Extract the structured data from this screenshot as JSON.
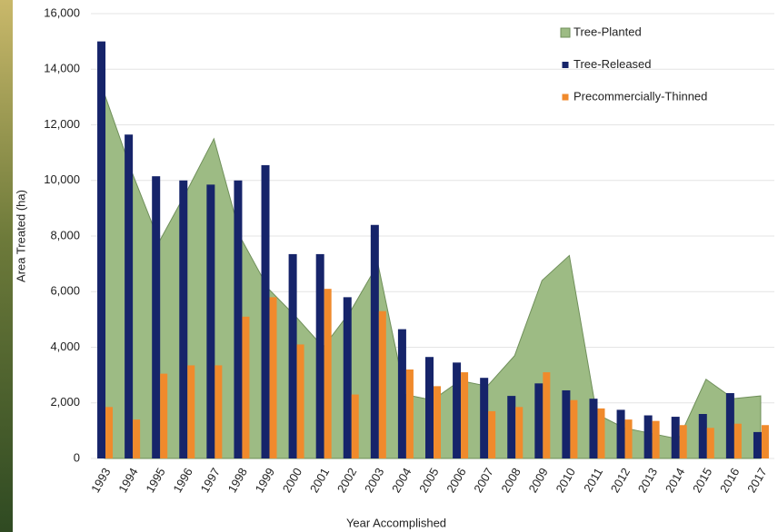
{
  "chart_data": {
    "type": "bar",
    "x_label": "Year Accomplished",
    "y_label": "Area Treated (ha)",
    "categories": [
      "1993",
      "1994",
      "1995",
      "1996",
      "1997",
      "1998",
      "1999",
      "2000",
      "2001",
      "2002",
      "2003",
      "2004",
      "2005",
      "2006",
      "2007",
      "2008",
      "2009",
      "2010",
      "2011",
      "2012",
      "2013",
      "2014",
      "2015",
      "2016",
      "2017"
    ],
    "series": [
      {
        "name": "Tree-Planted",
        "type": "area",
        "color": "#9dbb84",
        "values": [
          13100,
          10300,
          7800,
          9600,
          11500,
          7900,
          6100,
          5100,
          4000,
          5300,
          7000,
          2300,
          2100,
          2800,
          2600,
          3700,
          6400,
          7300,
          1600,
          1100,
          900,
          700,
          2850,
          2150,
          2250
        ]
      },
      {
        "name": "Tree-Released",
        "type": "bar",
        "color": "#16246a",
        "values": [
          15000,
          11650,
          10150,
          10000,
          9850,
          10000,
          10550,
          7350,
          7350,
          5800,
          8400,
          4650,
          3650,
          3450,
          2900,
          2250,
          2700,
          2450,
          2150,
          1750,
          1550,
          1500,
          1600,
          2350,
          950
        ]
      },
      {
        "name": "Precommercially-Thinned",
        "type": "bar",
        "color": "#f08a2c",
        "values": [
          1850,
          1400,
          3050,
          3350,
          3350,
          5100,
          5800,
          4100,
          6100,
          2300,
          5300,
          3200,
          2600,
          3100,
          1700,
          1850,
          3100,
          2100,
          1800,
          1400,
          1350,
          1200,
          1100,
          1250,
          1200
        ]
      }
    ],
    "ylim": [
      0,
      16000
    ],
    "yticks": [
      0,
      {
        "value": 2000,
        "label": "2,000"
      },
      {
        "value": 4000,
        "label": "4,000"
      },
      {
        "value": 6000,
        "label": "6,000"
      },
      {
        "value": 8000,
        "label": "8,000"
      },
      {
        "value": 10000,
        "label": "10,000"
      },
      {
        "value": 12000,
        "label": "12,000"
      },
      {
        "value": 14000,
        "label": "14,000"
      },
      {
        "value": 16000,
        "label": "16,000"
      }
    ],
    "grid": true,
    "legend": "upper-right"
  }
}
